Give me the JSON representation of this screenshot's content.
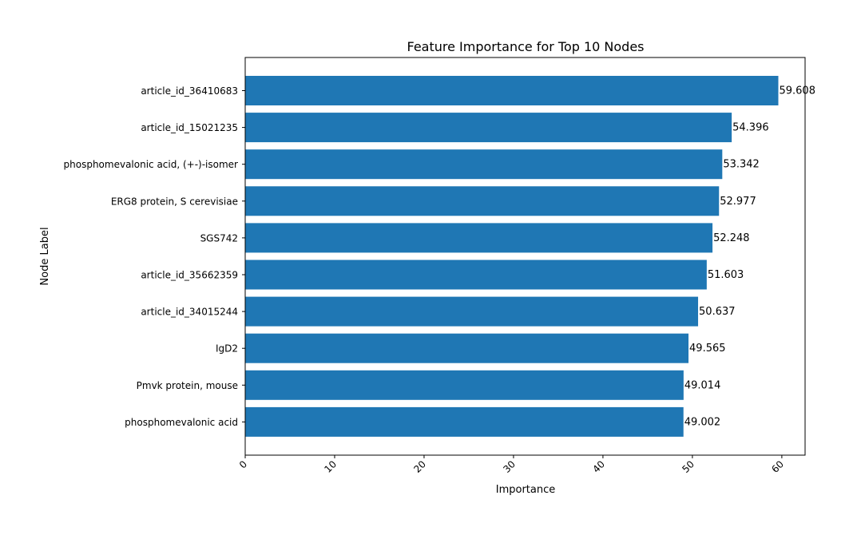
{
  "chart_data": {
    "type": "bar",
    "orientation": "horizontal",
    "title": "Feature Importance for Top 10 Nodes",
    "xlabel": "Importance",
    "ylabel": "Node Label",
    "xlim": [
      0,
      62.6
    ],
    "xticks": [
      0,
      10,
      20,
      30,
      40,
      50,
      60
    ],
    "grid": false,
    "bar_color": "#1f77b4",
    "categories": [
      "article_id_36410683",
      "article_id_15021235",
      "phosphomevalonic acid, (+-)-isomer",
      "ERG8 protein, S cerevisiae",
      "SGS742",
      "article_id_35662359",
      "article_id_34015244",
      "IgD2",
      "Pmvk protein, mouse",
      "phosphomevalonic acid"
    ],
    "values": [
      59.608,
      54.396,
      53.342,
      52.977,
      52.248,
      51.603,
      50.637,
      49.565,
      49.014,
      49.002
    ],
    "value_labels": [
      "59.608",
      "54.396",
      "53.342",
      "52.977",
      "52.248",
      "51.603",
      "50.637",
      "49.565",
      "49.014",
      "49.002"
    ]
  }
}
